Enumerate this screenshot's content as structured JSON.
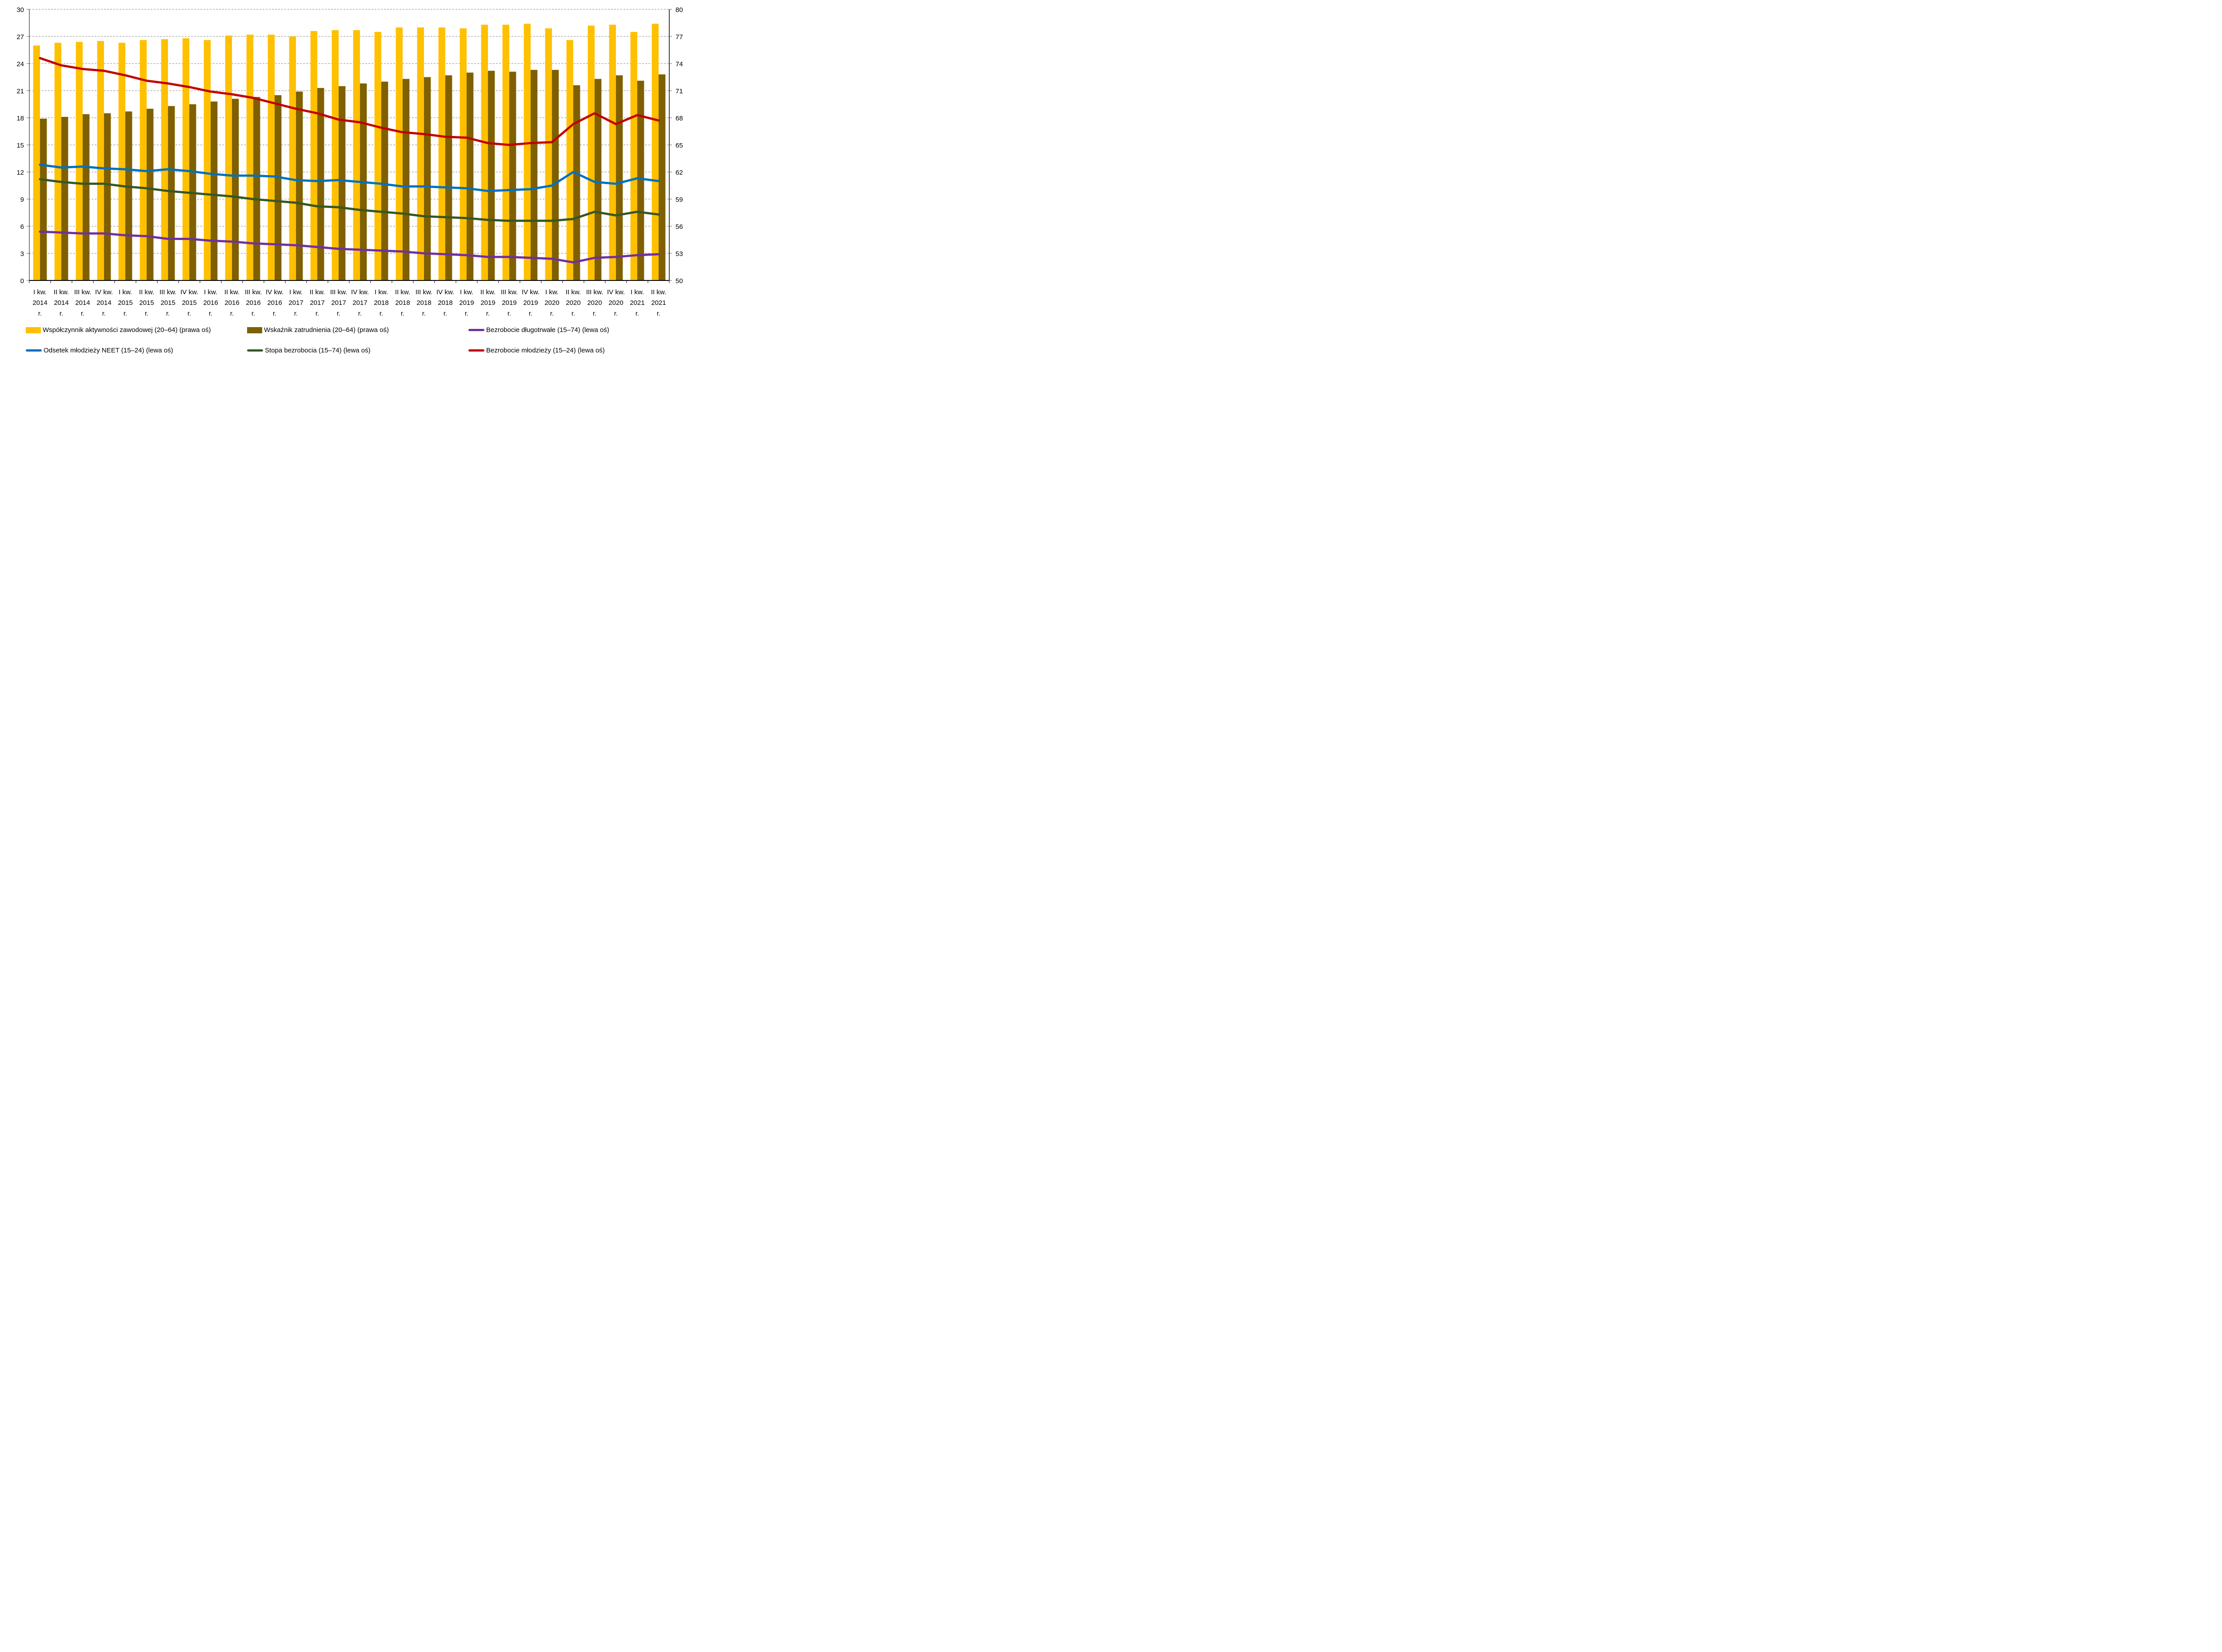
{
  "chart_data": {
    "type": "bar",
    "title": "",
    "categories": [
      [
        "I kw.",
        "2014",
        "r."
      ],
      [
        "II kw.",
        "2014",
        "r."
      ],
      [
        "III kw.",
        "2014",
        "r."
      ],
      [
        "IV kw.",
        "2014",
        "r."
      ],
      [
        "I kw.",
        "2015",
        "r."
      ],
      [
        "II kw.",
        "2015",
        "r."
      ],
      [
        "III kw.",
        "2015",
        "r."
      ],
      [
        "IV kw.",
        "2015",
        "r."
      ],
      [
        "I kw.",
        "2016",
        "r."
      ],
      [
        "II kw.",
        "2016",
        "r."
      ],
      [
        "III kw.",
        "2016",
        "r."
      ],
      [
        "IV kw.",
        "2016",
        "r."
      ],
      [
        "I kw.",
        "2017",
        "r."
      ],
      [
        "II kw.",
        "2017",
        "r."
      ],
      [
        "III kw.",
        "2017",
        "r."
      ],
      [
        "IV kw.",
        "2017",
        "r."
      ],
      [
        "I kw.",
        "2018",
        "r."
      ],
      [
        "II kw.",
        "2018",
        "r."
      ],
      [
        "III kw.",
        "2018",
        "r."
      ],
      [
        "IV kw.",
        "2018",
        "r."
      ],
      [
        "I kw.",
        "2019",
        "r."
      ],
      [
        "II kw.",
        "2019",
        "r."
      ],
      [
        "III kw.",
        "2019",
        "r."
      ],
      [
        "IV kw.",
        "2019",
        "r."
      ],
      [
        "I kw.",
        "2020",
        "r."
      ],
      [
        "II kw.",
        "2020",
        "r."
      ],
      [
        "III kw.",
        "2020",
        "r."
      ],
      [
        "IV kw.",
        "2020",
        "r."
      ],
      [
        "I kw.",
        "2021",
        "r."
      ],
      [
        "II kw.",
        "2021",
        "r."
      ]
    ],
    "left_axis": {
      "ylim": [
        0,
        30
      ],
      "ticks": [
        0,
        3,
        6,
        9,
        12,
        15,
        18,
        21,
        24,
        27,
        30
      ]
    },
    "right_axis": {
      "ylim": [
        50,
        80
      ],
      "ticks": [
        50,
        53,
        56,
        59,
        62,
        65,
        68,
        71,
        74,
        77,
        80
      ]
    },
    "grid": true,
    "legend_position": "bottom",
    "series": [
      {
        "name": "Współczynnik aktywności zawodowej (20–64) (prawa oś)",
        "kind": "bar",
        "axis": "right",
        "color": "#FFC000",
        "values": [
          76.0,
          76.3,
          76.4,
          76.5,
          76.3,
          76.6,
          76.7,
          76.8,
          76.6,
          77.1,
          77.2,
          77.2,
          77.0,
          77.6,
          77.7,
          77.7,
          77.5,
          78.0,
          78.0,
          78.0,
          77.9,
          78.3,
          78.3,
          78.4,
          77.9,
          76.6,
          78.2,
          78.3,
          77.5,
          78.4
        ]
      },
      {
        "name": "Wskaźnik zatrudnienia (20–64) (prawa oś)",
        "kind": "bar",
        "axis": "right",
        "color": "#7F6000",
        "values": [
          67.9,
          68.1,
          68.4,
          68.5,
          68.7,
          69.0,
          69.3,
          69.5,
          69.8,
          70.1,
          70.3,
          70.5,
          70.9,
          71.3,
          71.5,
          71.8,
          72.0,
          72.3,
          72.5,
          72.7,
          73.0,
          73.2,
          73.1,
          73.3,
          73.3,
          71.6,
          72.3,
          72.7,
          72.1,
          72.8
        ]
      },
      {
        "name": "Bezrobocie długotrwałe (15–74) (lewa oś)",
        "kind": "line",
        "axis": "left",
        "color": "#7030A0",
        "values": [
          5.4,
          5.3,
          5.2,
          5.2,
          5.0,
          4.9,
          4.6,
          4.6,
          4.4,
          4.3,
          4.1,
          4.0,
          3.9,
          3.7,
          3.5,
          3.4,
          3.3,
          3.2,
          3.0,
          2.9,
          2.8,
          2.6,
          2.6,
          2.5,
          2.4,
          2.0,
          2.5,
          2.6,
          2.8,
          2.9
        ]
      },
      {
        "name": "Odsetek młodzieży NEET (15–24) (lewa oś)",
        "kind": "line",
        "axis": "left",
        "color": "#0070C0",
        "values": [
          12.8,
          12.5,
          12.6,
          12.4,
          12.3,
          12.1,
          12.3,
          12.1,
          11.8,
          11.6,
          11.6,
          11.5,
          11.1,
          11.0,
          11.1,
          10.9,
          10.7,
          10.4,
          10.4,
          10.3,
          10.2,
          9.9,
          10.0,
          10.1,
          10.5,
          12.0,
          10.9,
          10.7,
          11.3,
          11.0
        ]
      },
      {
        "name": "Stopa bezrobocia (15–74) (lewa oś)",
        "kind": "line",
        "axis": "left",
        "color": "#375623",
        "values": [
          11.2,
          10.9,
          10.7,
          10.7,
          10.4,
          10.2,
          9.9,
          9.7,
          9.5,
          9.3,
          9.0,
          8.8,
          8.6,
          8.2,
          8.1,
          7.8,
          7.6,
          7.4,
          7.1,
          7.0,
          6.9,
          6.7,
          6.6,
          6.6,
          6.6,
          6.8,
          7.6,
          7.2,
          7.6,
          7.3
        ]
      },
      {
        "name": "Bezrobocie młodzieży (15–24) (lewa oś)",
        "kind": "line",
        "axis": "left",
        "color": "#C00000",
        "values": [
          24.6,
          23.8,
          23.4,
          23.2,
          22.7,
          22.1,
          21.8,
          21.4,
          20.9,
          20.6,
          20.2,
          19.6,
          19.0,
          18.5,
          17.8,
          17.5,
          16.9,
          16.4,
          16.2,
          15.9,
          15.8,
          15.2,
          15.0,
          15.2,
          15.3,
          17.3,
          18.5,
          17.3,
          18.3,
          17.7
        ]
      }
    ]
  }
}
